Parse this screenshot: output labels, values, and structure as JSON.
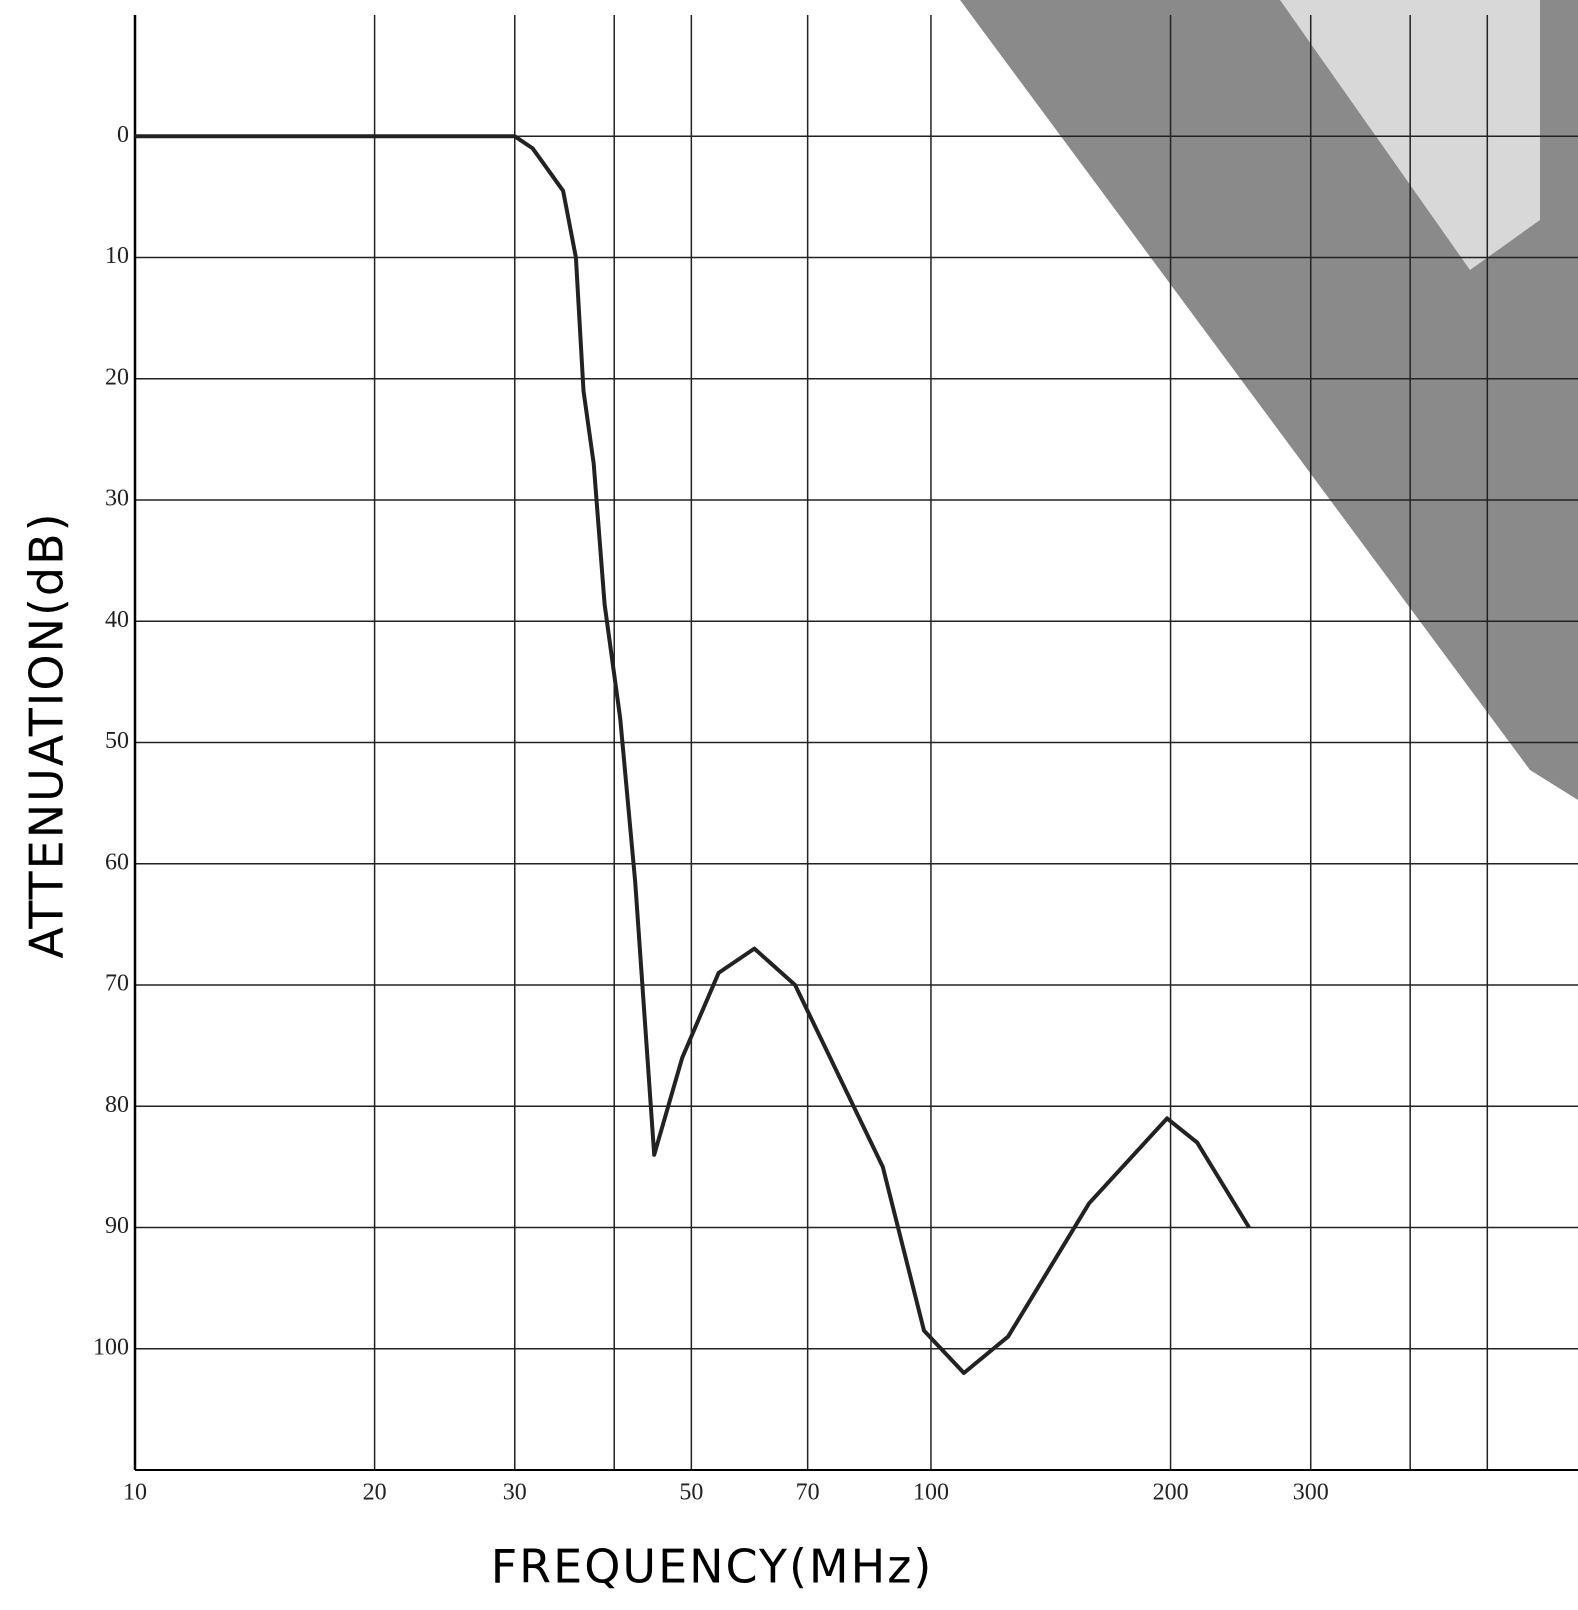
{
  "chart_data": {
    "type": "line",
    "x_label": "FREQUENCY(MHz)",
    "y_label": "ATTENUATION(dB)",
    "x_log": true,
    "y_inverted": true,
    "grid": true,
    "xlim": [
      10,
      650
    ],
    "ylim": [
      -10,
      110
    ],
    "xticks": [
      10,
      20,
      30,
      {
        "value": 40,
        "label": null
      },
      50,
      70,
      100,
      200,
      300,
      {
        "value": 400,
        "label": null
      },
      {
        "value": 500,
        "label": null
      }
    ],
    "yticks": [
      0,
      10,
      20,
      30,
      40,
      50,
      60,
      70,
      80,
      90,
      100
    ],
    "series": [
      {
        "name": null,
        "color": "#222222",
        "x": [
          10,
          30,
          31.6,
          34.5,
          35.8,
          36.6,
          37.7,
          38.9,
          40.7,
          42.5,
          44.9,
          48.7,
          54.1,
          60,
          67.5,
          78.6,
          87,
          98,
          110,
          125,
          158,
          198,
          216,
          251
        ],
        "values": [
          0,
          0,
          1,
          4.5,
          10,
          21,
          27,
          38.6,
          48,
          61.5,
          84,
          76,
          69,
          67,
          70,
          79,
          85,
          98.5,
          102,
          99,
          88,
          81,
          83,
          90
        ]
      }
    ]
  }
}
